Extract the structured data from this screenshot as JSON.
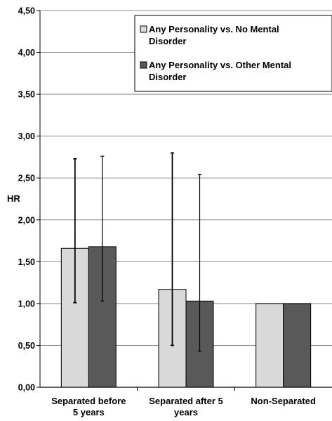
{
  "chart_data": {
    "type": "bar",
    "ylabel": "HR",
    "ylim": [
      0,
      4.5
    ],
    "ytick_step": 0.5,
    "ytick_labels": [
      "0,00",
      "0,50",
      "1,00",
      "1,50",
      "2,00",
      "2,50",
      "3,00",
      "3,50",
      "4,00",
      "4,50"
    ],
    "grid": true,
    "legend_position": "top-right",
    "categories": [
      [
        "Separated before",
        "5 years"
      ],
      [
        "Separated after 5",
        "years"
      ],
      [
        "Non-Separated"
      ]
    ],
    "series": [
      {
        "name": "Any Personality vs. No Mental Disorder",
        "legend_lines": [
          "Any Personality vs. No Mental",
          "Disorder"
        ],
        "color": "#d9d9d9",
        "values": [
          1.66,
          1.17,
          1.0
        ],
        "error_low": [
          1.01,
          0.5,
          null
        ],
        "error_high": [
          2.73,
          2.8,
          null
        ]
      },
      {
        "name": "Any Personality vs. Other Mental Disorder",
        "legend_lines": [
          "Any Personality vs. Other Mental",
          "Disorder"
        ],
        "color": "#595959",
        "values": [
          1.68,
          1.03,
          1.0
        ],
        "error_low": [
          1.03,
          0.43,
          null
        ],
        "error_high": [
          2.76,
          2.54,
          null
        ]
      }
    ]
  }
}
